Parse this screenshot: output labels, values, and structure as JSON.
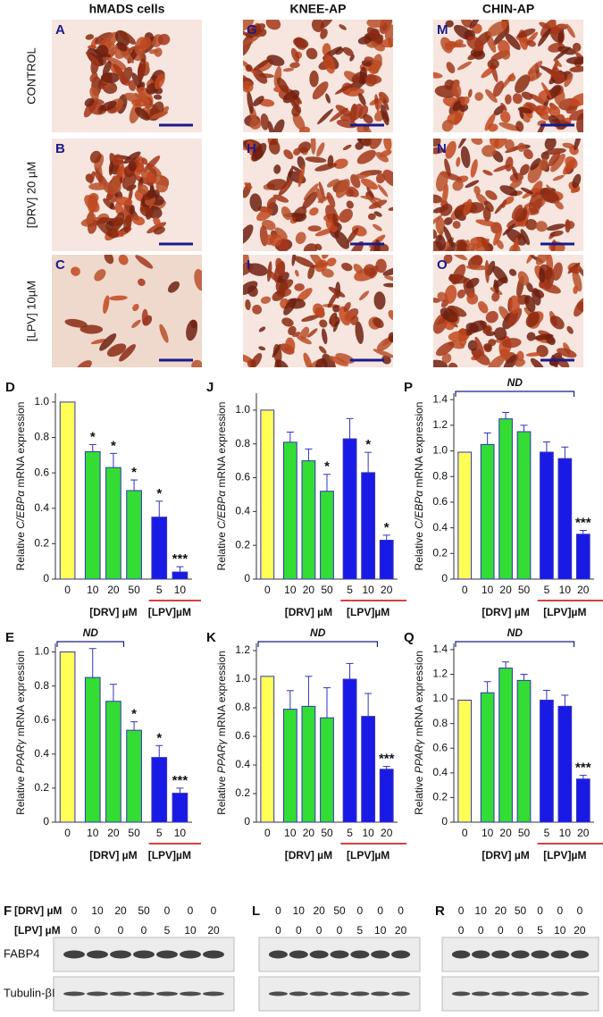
{
  "images": {
    "columns": [
      "hMADS cells",
      "KNEE-AP",
      "CHIN-AP"
    ],
    "rows": [
      "CONTROL",
      "[DRV] 20 µM",
      "[LPV] 10µM"
    ],
    "panels": [
      [
        "A",
        "G",
        "M"
      ],
      [
        "B",
        "H",
        "N"
      ],
      [
        "C",
        "I",
        "O"
      ]
    ]
  },
  "chart_data": [
    {
      "type": "bar",
      "panel": "D",
      "y_label": [
        "Relative ",
        "C/EBPα",
        " mRNA expression"
      ],
      "ylim": [
        0,
        1.05
      ],
      "yticks": [
        0,
        0.2,
        0.4,
        0.6,
        0.8,
        {
          "value": 1,
          "label": "1.0"
        }
      ],
      "groups": [
        {
          "categories": [
            "0"
          ],
          "values": [
            1.0
          ],
          "errors": [
            0
          ],
          "marks": [
            null
          ],
          "color": "#ffff55"
        },
        {
          "label": "[DRV] µM",
          "categories": [
            "10",
            "20",
            "50"
          ],
          "values": [
            0.72,
            0.63,
            0.5
          ],
          "errors": [
            0.04,
            0.08,
            0.06
          ],
          "marks": [
            "*",
            "*",
            "*"
          ],
          "color": "#33dd33"
        },
        {
          "label": "[LPV]µM",
          "categories": [
            "5",
            "10"
          ],
          "values": [
            0.35,
            0.04
          ],
          "errors": [
            0.09,
            0.03
          ],
          "marks": [
            "*",
            "***"
          ],
          "color": "#1a1ae6",
          "underline": "#cc0000"
        }
      ]
    },
    {
      "type": "bar",
      "panel": "J",
      "y_label": [
        "Relative ",
        "C/EBPα",
        " mRNA expression"
      ],
      "ylim": [
        0,
        1.1
      ],
      "yticks": [
        0,
        0.2,
        0.4,
        0.6,
        0.8,
        {
          "value": 1,
          "label": "1.0"
        }
      ],
      "groups": [
        {
          "categories": [
            "0"
          ],
          "values": [
            1.0
          ],
          "errors": [
            0
          ],
          "marks": [
            null
          ],
          "color": "#ffff55"
        },
        {
          "label": "[DRV] µM",
          "categories": [
            "10",
            "20",
            "50"
          ],
          "values": [
            0.81,
            0.7,
            0.52
          ],
          "errors": [
            0.06,
            0.07,
            0.1
          ],
          "marks": [
            null,
            null,
            "*"
          ],
          "color": "#33dd33"
        },
        {
          "label": "[LPV]µM",
          "categories": [
            "5",
            "10",
            "20"
          ],
          "values": [
            0.83,
            0.63,
            0.23
          ],
          "errors": [
            0.12,
            0.12,
            0.03
          ],
          "marks": [
            null,
            "*",
            "*"
          ],
          "color": "#1a1ae6",
          "underline": "#cc0000"
        }
      ]
    },
    {
      "type": "bar",
      "panel": "P",
      "y_label": [
        "Relative ",
        "C/EBPα",
        " mRNA expression"
      ],
      "bracket": "ND",
      "ylim": [
        0,
        1.45
      ],
      "yticks": [
        0,
        0.2,
        0.4,
        0.6,
        0.8,
        {
          "value": 1,
          "label": "1.0"
        },
        1.2,
        1.4
      ],
      "groups": [
        {
          "categories": [
            "0"
          ],
          "values": [
            0.99
          ],
          "errors": [
            0
          ],
          "marks": [
            null
          ],
          "color": "#ffff55"
        },
        {
          "label": "[DRV] µM",
          "categories": [
            "10",
            "20",
            "50"
          ],
          "values": [
            1.05,
            1.25,
            1.15
          ],
          "errors": [
            0.09,
            0.05,
            0.05
          ],
          "marks": [
            null,
            null,
            null
          ],
          "color": "#33dd33"
        },
        {
          "label": "[LPV]µM",
          "categories": [
            "5",
            "10",
            "20"
          ],
          "values": [
            0.99,
            0.94,
            0.35
          ],
          "errors": [
            0.08,
            0.09,
            0.03
          ],
          "marks": [
            null,
            null,
            "***"
          ],
          "color": "#1a1ae6",
          "underline": "#cc0000"
        }
      ]
    },
    {
      "type": "bar",
      "panel": "E",
      "y_label": [
        "Relative ",
        "PPARγ",
        " mRNA expression"
      ],
      "bracket": "ND",
      "ylim": [
        0,
        1.05
      ],
      "yticks": [
        0,
        0.2,
        0.4,
        0.6,
        0.8,
        {
          "value": 1,
          "label": "1.0"
        }
      ],
      "groups": [
        {
          "categories": [
            "0"
          ],
          "values": [
            1.0
          ],
          "errors": [
            0
          ],
          "marks": [
            null
          ],
          "color": "#ffff55"
        },
        {
          "label": "[DRV] µM",
          "categories": [
            "10",
            "20",
            "50"
          ],
          "values": [
            0.85,
            0.71,
            0.54
          ],
          "errors": [
            0.17,
            0.1,
            0.05
          ],
          "marks": [
            null,
            null,
            "*"
          ],
          "color": "#33dd33"
        },
        {
          "label": "[LPV]µM",
          "categories": [
            "5",
            "10"
          ],
          "values": [
            0.38,
            0.17
          ],
          "errors": [
            0.07,
            0.03
          ],
          "marks": [
            "*",
            "***"
          ],
          "color": "#1a1ae6",
          "underline": "#cc0000"
        }
      ]
    },
    {
      "type": "bar",
      "panel": "K",
      "y_label": [
        "Relative ",
        "PPARγ",
        " mRNA expression"
      ],
      "bracket": "ND",
      "ylim": [
        0,
        1.25
      ],
      "yticks": [
        0,
        0.2,
        0.4,
        0.6,
        0.8,
        {
          "value": 1,
          "label": "1.0"
        },
        1.2
      ],
      "groups": [
        {
          "categories": [
            "0"
          ],
          "values": [
            1.02
          ],
          "errors": [
            0
          ],
          "marks": [
            null
          ],
          "color": "#ffff55"
        },
        {
          "label": "[DRV] µM",
          "categories": [
            "10",
            "20",
            "50"
          ],
          "values": [
            0.79,
            0.81,
            0.73
          ],
          "errors": [
            0.13,
            0.21,
            0.21
          ],
          "marks": [
            null,
            null,
            null
          ],
          "color": "#33dd33"
        },
        {
          "label": "[LPV]µM",
          "categories": [
            "5",
            "10",
            "20"
          ],
          "values": [
            1.0,
            0.74,
            0.37
          ],
          "errors": [
            0.11,
            0.16,
            0.02
          ],
          "marks": [
            null,
            null,
            "***"
          ],
          "color": "#1a1ae6",
          "underline": "#cc0000"
        }
      ]
    },
    {
      "type": "bar",
      "panel": "Q",
      "y_label": [
        "Relative ",
        "PPARγ",
        " mRNA expression"
      ],
      "bracket": "ND",
      "ylim": [
        0,
        1.45
      ],
      "yticks": [
        0,
        0.2,
        0.4,
        0.6,
        0.8,
        {
          "value": 1,
          "label": "1.0"
        },
        1.2,
        1.4
      ],
      "groups": [
        {
          "categories": [
            "0"
          ],
          "values": [
            0.99
          ],
          "errors": [
            0
          ],
          "marks": [
            null
          ],
          "color": "#ffff55"
        },
        {
          "label": "[DRV] µM",
          "categories": [
            "10",
            "20",
            "50"
          ],
          "values": [
            1.05,
            1.25,
            1.15
          ],
          "errors": [
            0.09,
            0.05,
            0.05
          ],
          "marks": [
            null,
            null,
            null
          ],
          "color": "#33dd33"
        },
        {
          "label": "[LPV]µM",
          "categories": [
            "5",
            "10",
            "20"
          ],
          "values": [
            0.99,
            0.94,
            0.35
          ],
          "errors": [
            0.08,
            0.09,
            0.03
          ],
          "marks": [
            null,
            null,
            "***"
          ],
          "color": "#1a1ae6",
          "underline": "#cc0000"
        }
      ]
    }
  ],
  "blots": [
    {
      "panel": "F",
      "rows": [
        {
          "label": "[DRV] µM",
          "lanes": [
            "0",
            "10",
            "20",
            "50",
            "0",
            "0",
            "0"
          ]
        },
        {
          "label": "[LPV] µM",
          "lanes": [
            "0",
            "0",
            "0",
            "0",
            "5",
            "10",
            "20"
          ]
        }
      ],
      "bands": [
        "FABP4",
        "Tubulin-βI"
      ]
    },
    {
      "panel": "L",
      "rows": [
        {
          "lanes": [
            "0",
            "10",
            "20",
            "50",
            "0",
            "0",
            "0"
          ]
        },
        {
          "lanes": [
            "0",
            "0",
            "0",
            "0",
            "5",
            "10",
            "20"
          ]
        }
      ]
    },
    {
      "panel": "R",
      "rows": [
        {
          "lanes": [
            "0",
            "10",
            "20",
            "50",
            "0",
            "0",
            "0"
          ]
        },
        {
          "lanes": [
            "0",
            "0",
            "0",
            "0",
            "5",
            "10",
            "20"
          ]
        }
      ]
    }
  ]
}
